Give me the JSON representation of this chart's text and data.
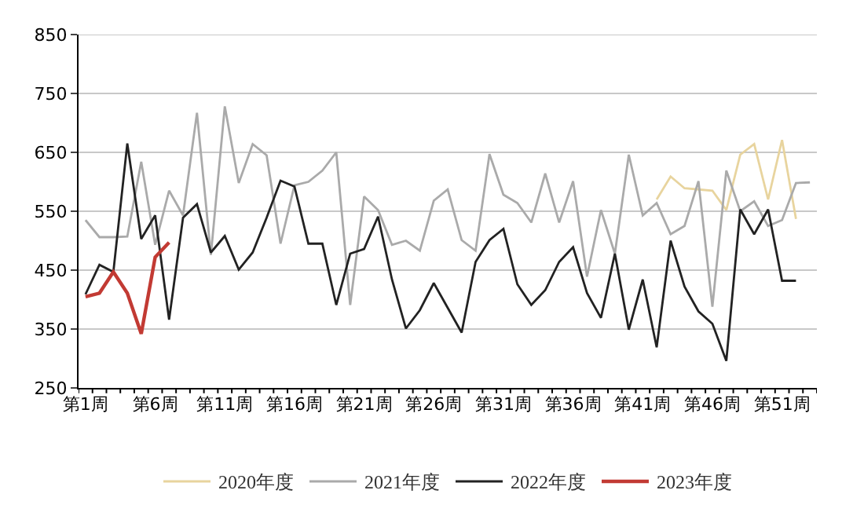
{
  "chart_data": {
    "type": "line",
    "categories": [
      "第1周",
      null,
      null,
      null,
      null,
      "第6周",
      null,
      null,
      null,
      null,
      "第11周",
      null,
      null,
      null,
      null,
      "第16周",
      null,
      null,
      null,
      null,
      "第21周",
      null,
      null,
      null,
      null,
      "第26周",
      null,
      null,
      null,
      null,
      "第31周",
      null,
      null,
      null,
      null,
      "第36周",
      null,
      null,
      null,
      null,
      "第41周",
      null,
      null,
      null,
      null,
      "第46周",
      null,
      null,
      null,
      null,
      "第51周",
      null,
      null
    ],
    "series": [
      {
        "name": "2020年度",
        "color": "#e8d49e",
        "values": [
          null,
          null,
          null,
          null,
          null,
          null,
          null,
          null,
          null,
          null,
          null,
          null,
          null,
          null,
          null,
          null,
          null,
          null,
          null,
          null,
          null,
          null,
          null,
          null,
          null,
          null,
          null,
          null,
          null,
          null,
          null,
          null,
          null,
          null,
          null,
          null,
          null,
          null,
          null,
          null,
          null,
          570,
          609,
          589,
          587,
          585,
          552,
          646,
          664,
          570,
          671,
          537,
          null
        ]
      },
      {
        "name": "2021年度",
        "color": "#aaaaaa",
        "values": [
          535,
          506,
          506,
          507,
          634,
          493,
          585,
          543,
          717,
          476,
          728,
          598,
          664,
          645,
          495,
          594,
          600,
          619,
          650,
          391,
          575,
          552,
          493,
          500,
          483,
          568,
          587,
          501,
          483,
          647,
          578,
          564,
          531,
          614,
          531,
          601,
          439,
          552,
          478,
          646,
          543,
          564,
          511,
          525,
          601,
          388,
          619,
          550,
          567,
          525,
          535,
          598,
          599
        ]
      },
      {
        "name": "2022年度",
        "color": "#222222",
        "values": [
          409,
          459,
          447,
          665,
          503,
          543,
          366,
          539,
          562,
          480,
          508,
          451,
          480,
          539,
          602,
          592,
          495,
          495,
          391,
          478,
          486,
          541,
          434,
          351,
          382,
          428,
          386,
          344,
          464,
          501,
          520,
          426,
          391,
          416,
          464,
          489,
          411,
          369,
          478,
          349,
          434,
          319,
          500,
          422,
          380,
          359,
          296,
          553,
          511,
          553,
          432,
          432,
          null
        ]
      },
      {
        "name": "2023年度",
        "color": "#c23a33",
        "values": [
          405,
          411,
          447,
          411,
          342,
          472,
          497,
          null,
          null,
          null,
          null,
          null,
          null,
          null,
          null,
          null,
          null,
          null,
          null,
          null,
          null,
          null,
          null,
          null,
          null,
          null,
          null,
          null,
          null,
          null,
          null,
          null,
          null,
          null,
          null,
          null,
          null,
          null,
          null,
          null,
          null,
          null,
          null,
          null,
          null,
          null,
          null,
          null,
          null,
          null,
          null,
          null,
          null
        ]
      }
    ],
    "ylim": [
      250,
      850
    ],
    "yticks": [
      250,
      350,
      450,
      550,
      650,
      750,
      850
    ],
    "grid": "y",
    "legend": "bottom",
    "marker": "none",
    "line_style": "solid"
  }
}
